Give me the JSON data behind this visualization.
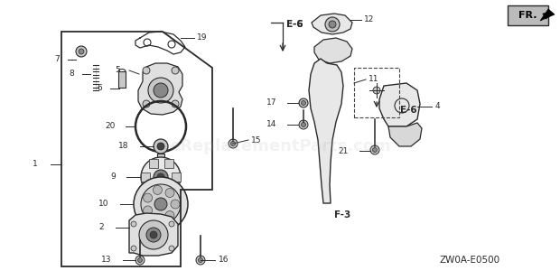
{
  "bg_color": "#ffffff",
  "diagram_code": "ZW0A-E0500",
  "fr_label": "FR.",
  "watermark": "eReplacementParts.com",
  "watermark_alpha": 0.15,
  "watermark_fontsize": 13,
  "line_color": "#2a2a2a",
  "light_gray": "#c8c8c8",
  "mid_gray": "#888888",
  "dark_gray": "#444444"
}
